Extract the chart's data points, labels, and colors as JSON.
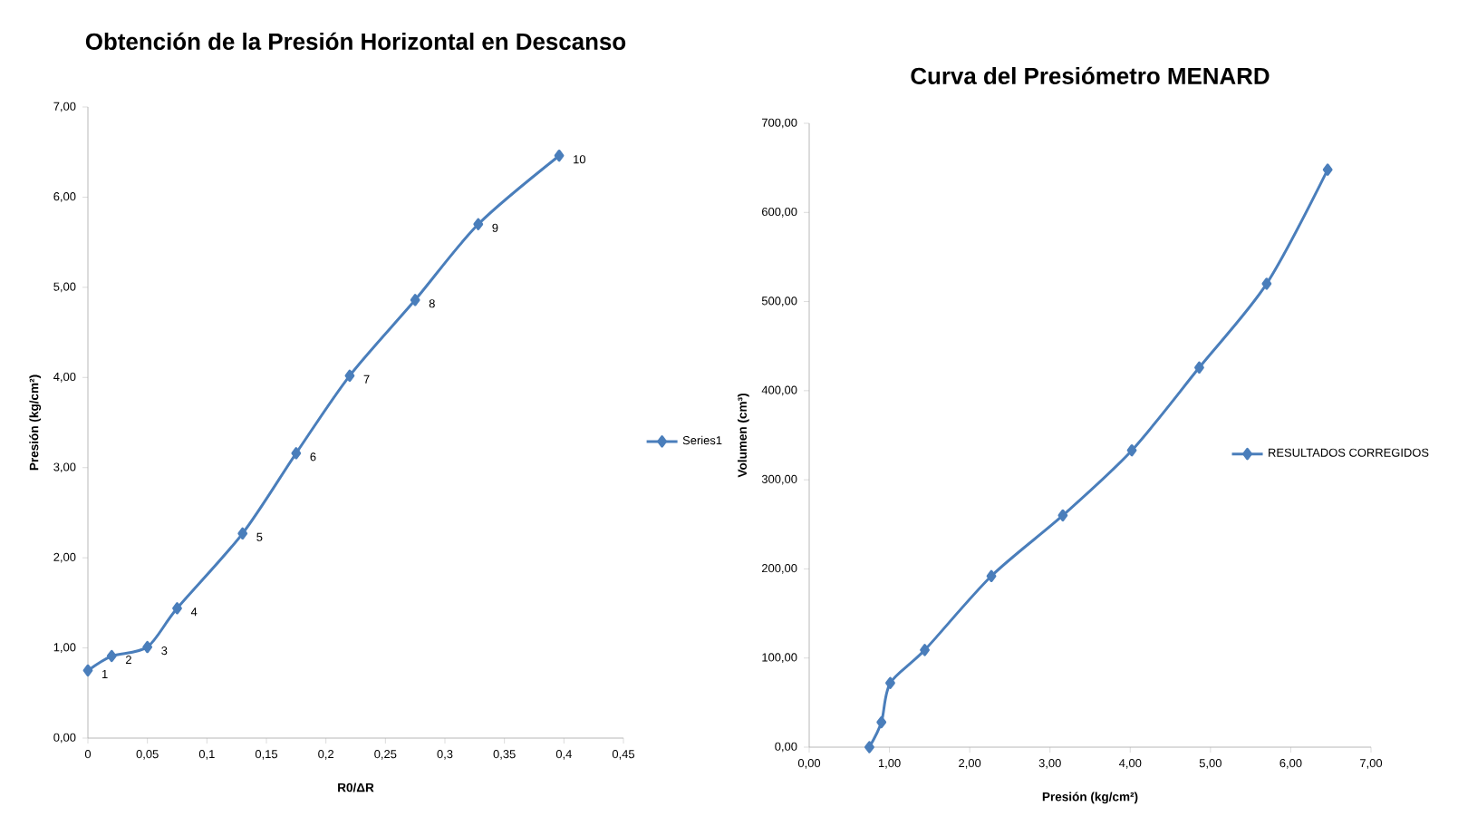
{
  "chart_data": [
    {
      "type": "line",
      "title": "Obtención de la Presión Horizontal en Descanso",
      "xlabel": "R0/ΔR",
      "ylabel": "Presión (kg/cm²)",
      "x": [
        0,
        0.02,
        0.05,
        0.075,
        0.13,
        0.175,
        0.22,
        0.275,
        0.328,
        0.396
      ],
      "series": [
        {
          "name": "Series1",
          "color": "#4a7ebb",
          "values": [
            0.75,
            0.91,
            1.01,
            1.44,
            2.27,
            3.16,
            4.02,
            4.86,
            5.7,
            6.46
          ]
        }
      ],
      "xlim": [
        0,
        0.45
      ],
      "ylim": [
        0,
        7
      ],
      "xticks": [
        {
          "value": 0,
          "label": "0"
        },
        {
          "value": 0.05,
          "label": "0,05"
        },
        {
          "value": 0.1,
          "label": "0,1"
        },
        {
          "value": 0.15,
          "label": "0,15"
        },
        {
          "value": 0.2,
          "label": "0,2"
        },
        {
          "value": 0.25,
          "label": "0,25"
        },
        {
          "value": 0.3,
          "label": "0,3"
        },
        {
          "value": 0.35,
          "label": "0,35"
        },
        {
          "value": 0.4,
          "label": "0,4"
        },
        {
          "value": 0.45,
          "label": "0,45"
        }
      ],
      "yticks": [
        {
          "value": 0,
          "label": "0,00"
        },
        {
          "value": 1,
          "label": "1,00"
        },
        {
          "value": 2,
          "label": "2,00"
        },
        {
          "value": 3,
          "label": "3,00"
        },
        {
          "value": 4,
          "label": "4,00"
        },
        {
          "value": 5,
          "label": "5,00"
        },
        {
          "value": 6,
          "label": "6,00"
        },
        {
          "value": 7,
          "label": "7,00"
        }
      ],
      "annotations": [
        {
          "text": "1",
          "x": 0,
          "y": 0.75
        },
        {
          "text": "2",
          "x": 0.02,
          "y": 0.91
        },
        {
          "text": "3",
          "x": 0.05,
          "y": 1.01
        },
        {
          "text": "4",
          "x": 0.075,
          "y": 1.44
        },
        {
          "text": "5",
          "x": 0.13,
          "y": 2.27
        },
        {
          "text": "6",
          "x": 0.175,
          "y": 3.16
        },
        {
          "text": "7",
          "x": 0.22,
          "y": 4.02
        },
        {
          "text": "8",
          "x": 0.275,
          "y": 4.86
        },
        {
          "text": "9",
          "x": 0.328,
          "y": 5.7
        },
        {
          "text": "10",
          "x": 0.396,
          "y": 6.46
        }
      ],
      "legend": "right",
      "marker": "diamond",
      "line_style": "solid"
    },
    {
      "type": "line",
      "title": "Curva del Presiómetro MENARD",
      "xlabel": "Presión (kg/cm²)",
      "ylabel": "Volumen (cm³)",
      "x": [
        0.75,
        0.9,
        1.01,
        1.44,
        2.27,
        3.16,
        4.02,
        4.86,
        5.7,
        6.46
      ],
      "series": [
        {
          "name": "RESULTADOS CORREGIDOS",
          "color": "#4a7ebb",
          "values": [
            0,
            28,
            72,
            109,
            192,
            260,
            333,
            426,
            520,
            648
          ]
        }
      ],
      "xlim": [
        0,
        7
      ],
      "ylim": [
        0,
        700
      ],
      "xticks": [
        {
          "value": 0,
          "label": "0,00"
        },
        {
          "value": 1,
          "label": "1,00"
        },
        {
          "value": 2,
          "label": "2,00"
        },
        {
          "value": 3,
          "label": "3,00"
        },
        {
          "value": 4,
          "label": "4,00"
        },
        {
          "value": 5,
          "label": "5,00"
        },
        {
          "value": 6,
          "label": "6,00"
        },
        {
          "value": 7,
          "label": "7,00"
        }
      ],
      "yticks": [
        {
          "value": 0,
          "label": "0,00"
        },
        {
          "value": 100,
          "label": "100,00"
        },
        {
          "value": 200,
          "label": "200,00"
        },
        {
          "value": 300,
          "label": "300,00"
        },
        {
          "value": 400,
          "label": "400,00"
        },
        {
          "value": 500,
          "label": "500,00"
        },
        {
          "value": 600,
          "label": "600,00"
        },
        {
          "value": 700,
          "label": "700,00"
        }
      ],
      "legend": "right",
      "marker": "diamond",
      "line_style": "solid"
    }
  ]
}
